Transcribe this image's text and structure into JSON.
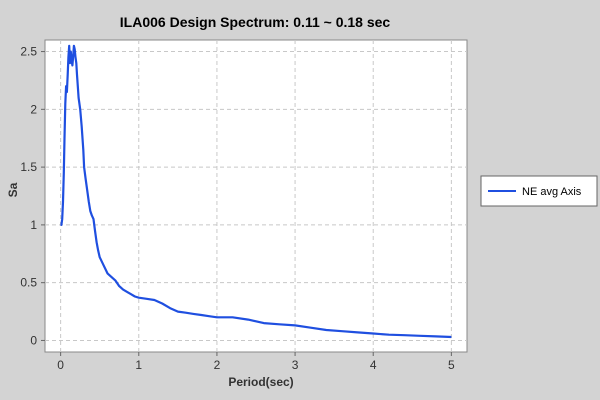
{
  "chart_data": {
    "type": "line",
    "title": "ILA006 Design Spectrum: 0.11 ~ 0.18 sec",
    "xlabel": "Period(sec)",
    "ylabel": "Sa",
    "xlim": [
      -0.2,
      5.2
    ],
    "ylim": [
      -0.1,
      2.6
    ],
    "x_ticks": [
      0,
      1,
      2,
      3,
      4,
      5
    ],
    "x_tick_labels": [
      "0",
      "1",
      "2",
      "3",
      "4",
      "5"
    ],
    "y_ticks": [
      0,
      0.5,
      1,
      1.5,
      2,
      2.5
    ],
    "y_tick_labels": [
      "0",
      "0.5",
      "1",
      "1.5",
      "2",
      "2.5"
    ],
    "grid": true,
    "legend_position": "right",
    "series": [
      {
        "name": "NE avg Axis",
        "color": "#1f4fe0",
        "x": [
          0.0,
          0.01,
          0.02,
          0.03,
          0.04,
          0.05,
          0.06,
          0.07,
          0.08,
          0.09,
          0.1,
          0.11,
          0.12,
          0.13,
          0.14,
          0.15,
          0.16,
          0.17,
          0.18,
          0.19,
          0.2,
          0.21,
          0.22,
          0.23,
          0.25,
          0.27,
          0.29,
          0.3,
          0.32,
          0.34,
          0.36,
          0.38,
          0.4,
          0.42,
          0.44,
          0.46,
          0.48,
          0.5,
          0.55,
          0.6,
          0.65,
          0.7,
          0.75,
          0.8,
          0.85,
          0.9,
          0.95,
          1.0,
          1.1,
          1.2,
          1.3,
          1.4,
          1.5,
          1.6,
          1.7,
          1.8,
          1.9,
          2.0,
          2.2,
          2.4,
          2.6,
          2.8,
          3.0,
          3.2,
          3.4,
          3.6,
          3.8,
          4.0,
          4.2,
          4.4,
          4.6,
          4.8,
          5.0
        ],
        "y": [
          1.0,
          1.0,
          1.05,
          1.2,
          1.45,
          1.75,
          2.05,
          2.2,
          2.15,
          2.3,
          2.45,
          2.55,
          2.4,
          2.5,
          2.42,
          2.38,
          2.45,
          2.55,
          2.52,
          2.45,
          2.4,
          2.3,
          2.2,
          2.1,
          2.0,
          1.85,
          1.65,
          1.5,
          1.4,
          1.3,
          1.2,
          1.12,
          1.08,
          1.05,
          0.95,
          0.85,
          0.78,
          0.72,
          0.65,
          0.58,
          0.55,
          0.52,
          0.47,
          0.44,
          0.42,
          0.4,
          0.38,
          0.37,
          0.36,
          0.35,
          0.32,
          0.28,
          0.25,
          0.24,
          0.23,
          0.22,
          0.21,
          0.2,
          0.2,
          0.18,
          0.15,
          0.14,
          0.13,
          0.11,
          0.09,
          0.08,
          0.07,
          0.06,
          0.05,
          0.045,
          0.04,
          0.035,
          0.03
        ]
      }
    ]
  }
}
